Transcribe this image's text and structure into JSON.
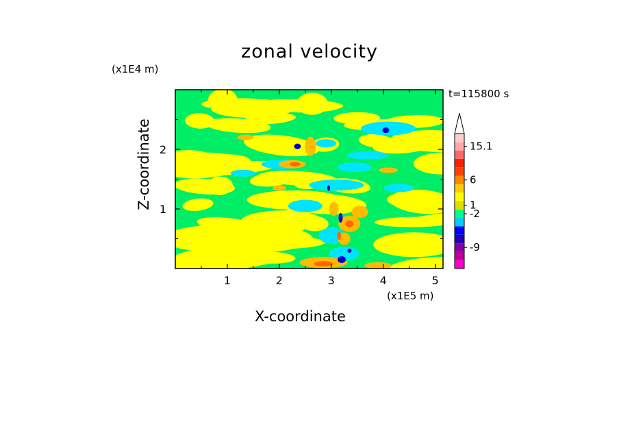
{
  "chart_data": {
    "type": "heatmap",
    "title": "zonal velocity",
    "xlabel": "X-coordinate",
    "ylabel": "Z-coordinate",
    "x_scale_label": "(x1E5 m)",
    "y_scale_label": "(x1E4 m)",
    "time_label": "t=115800 s",
    "xlim": [
      0,
      5.15
    ],
    "ylim": [
      0,
      3.0
    ],
    "x_ticks": [
      1,
      2,
      3,
      4,
      5
    ],
    "x_tick_labels": [
      "1",
      "2",
      "3",
      "4",
      "5"
    ],
    "y_ticks": [
      1,
      2
    ],
    "y_tick_labels": [
      "1",
      "2"
    ],
    "colorbar": {
      "colors": [
        "#ff00cc",
        "#b8009b",
        "#8800a8",
        "#2200bb",
        "#0000ff",
        "#00ccff",
        "#00ff88",
        "#dddd00",
        "#ffff00",
        "#ffcc00",
        "#ff8800",
        "#ff4400",
        "#ff2200",
        "#ff6666",
        "#ffaaaa",
        "#ffcccc"
      ],
      "labeled_values": [
        {
          "label": "15.1",
          "level": 14
        },
        {
          "label": "6",
          "level": 10
        },
        {
          "label": "1",
          "level": 7
        },
        {
          "label": "-2",
          "level": 6
        },
        {
          "label": "-9",
          "level": 2
        }
      ],
      "extend_max": true
    },
    "field_colors": {
      "strong_negative": "#0000cc",
      "negative": "#00e5ff",
      "near_zero": "#00ee66",
      "weak_positive": "#ffff00",
      "positive": "#ffbb00",
      "strong_positive": "#ff6600",
      "max_positive": "#ff3300"
    },
    "grid": false,
    "legend": "colorbar-right"
  }
}
